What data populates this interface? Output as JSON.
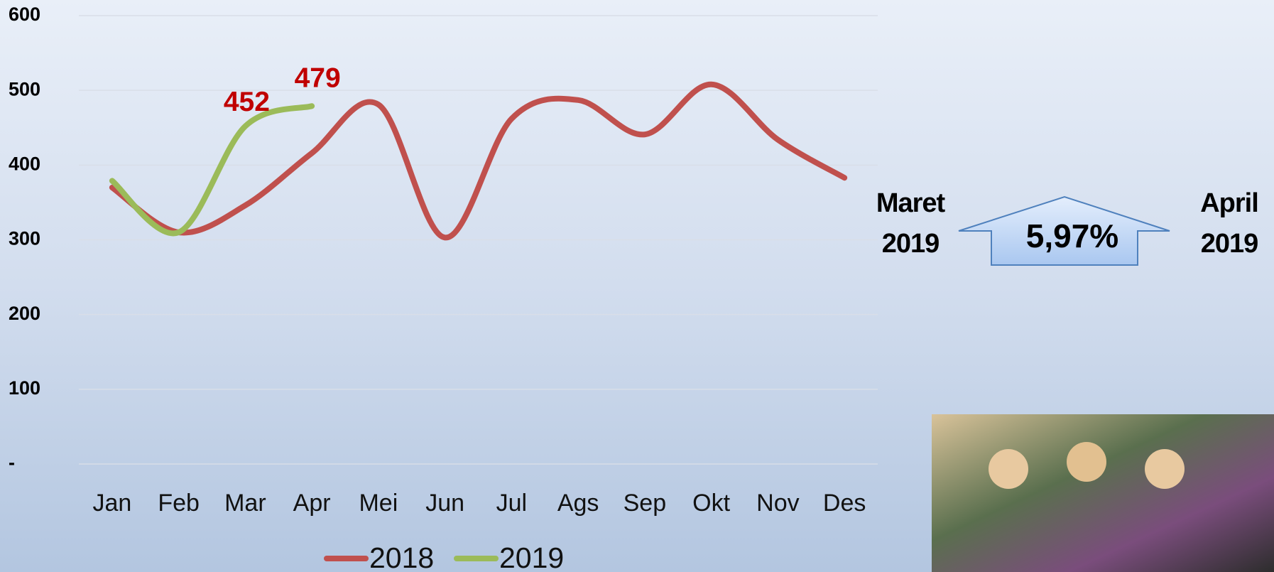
{
  "chart_data": {
    "type": "line",
    "categories": [
      "Jan",
      "Feb",
      "Mar",
      "Apr",
      "Mei",
      "Jun",
      "Jul",
      "Ags",
      "Sep",
      "Okt",
      "Nov",
      "Des"
    ],
    "series": [
      {
        "name": "2018",
        "color": "#c0504d",
        "values": [
          370,
          310,
          346,
          416,
          481,
          303,
          462,
          487,
          441,
          508,
          434,
          383
        ]
      },
      {
        "name": "2019",
        "color": "#9bbb59",
        "values": [
          379,
          310,
          452,
          479,
          null,
          null,
          null,
          null,
          null,
          null,
          null,
          null
        ],
        "value_labels": [
          null,
          null,
          "452",
          "479",
          null,
          null,
          null,
          null,
          null,
          null,
          null,
          null
        ]
      }
    ],
    "ylim": [
      0,
      600
    ],
    "yticks": [
      {
        "value": 0,
        "label": "-"
      },
      100,
      200,
      300,
      400,
      500,
      600
    ],
    "grid": true,
    "legend": "bottom",
    "annotation": {
      "from": "Maret 2019",
      "change": "5,97%",
      "to": "April 2019"
    }
  }
}
